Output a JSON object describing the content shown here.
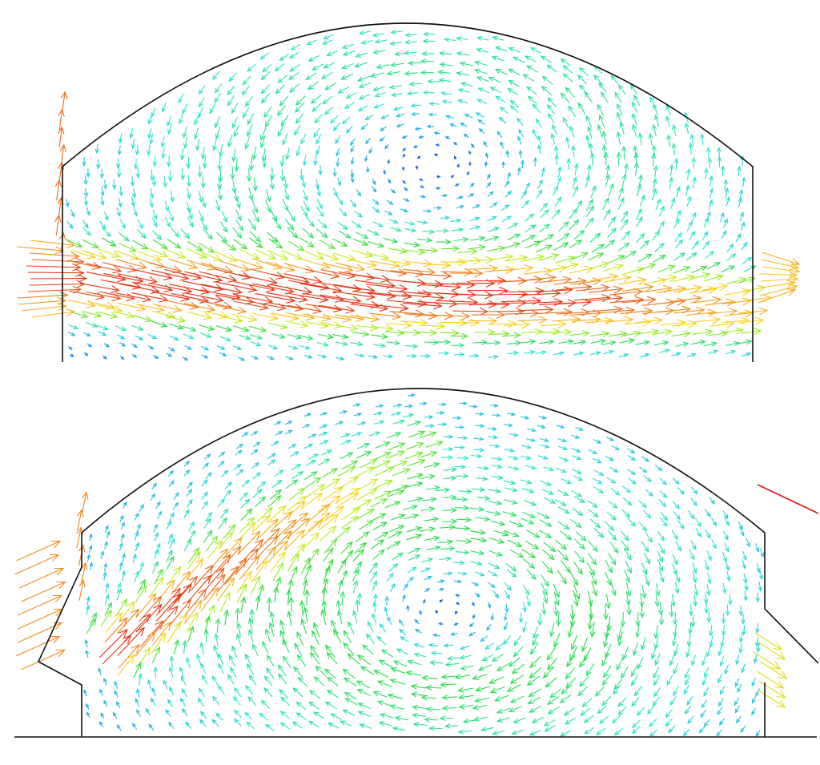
{
  "figure": {
    "panels": [
      {
        "name": "top-panel",
        "vortex_direction": "counterclockwise",
        "jet": "straight-horizontal"
      },
      {
        "name": "bottom-panel",
        "vortex_direction": "clockwise",
        "jet": "diagonal-up-right"
      }
    ],
    "colormap": [
      "#1428c8",
      "#19a0e6",
      "#2ee6d2",
      "#2adc3c",
      "#b4f01e",
      "#ffd21e",
      "#f08c1e",
      "#e63214"
    ],
    "outline_color": "#111111",
    "stray_line_color": "#e01010"
  }
}
